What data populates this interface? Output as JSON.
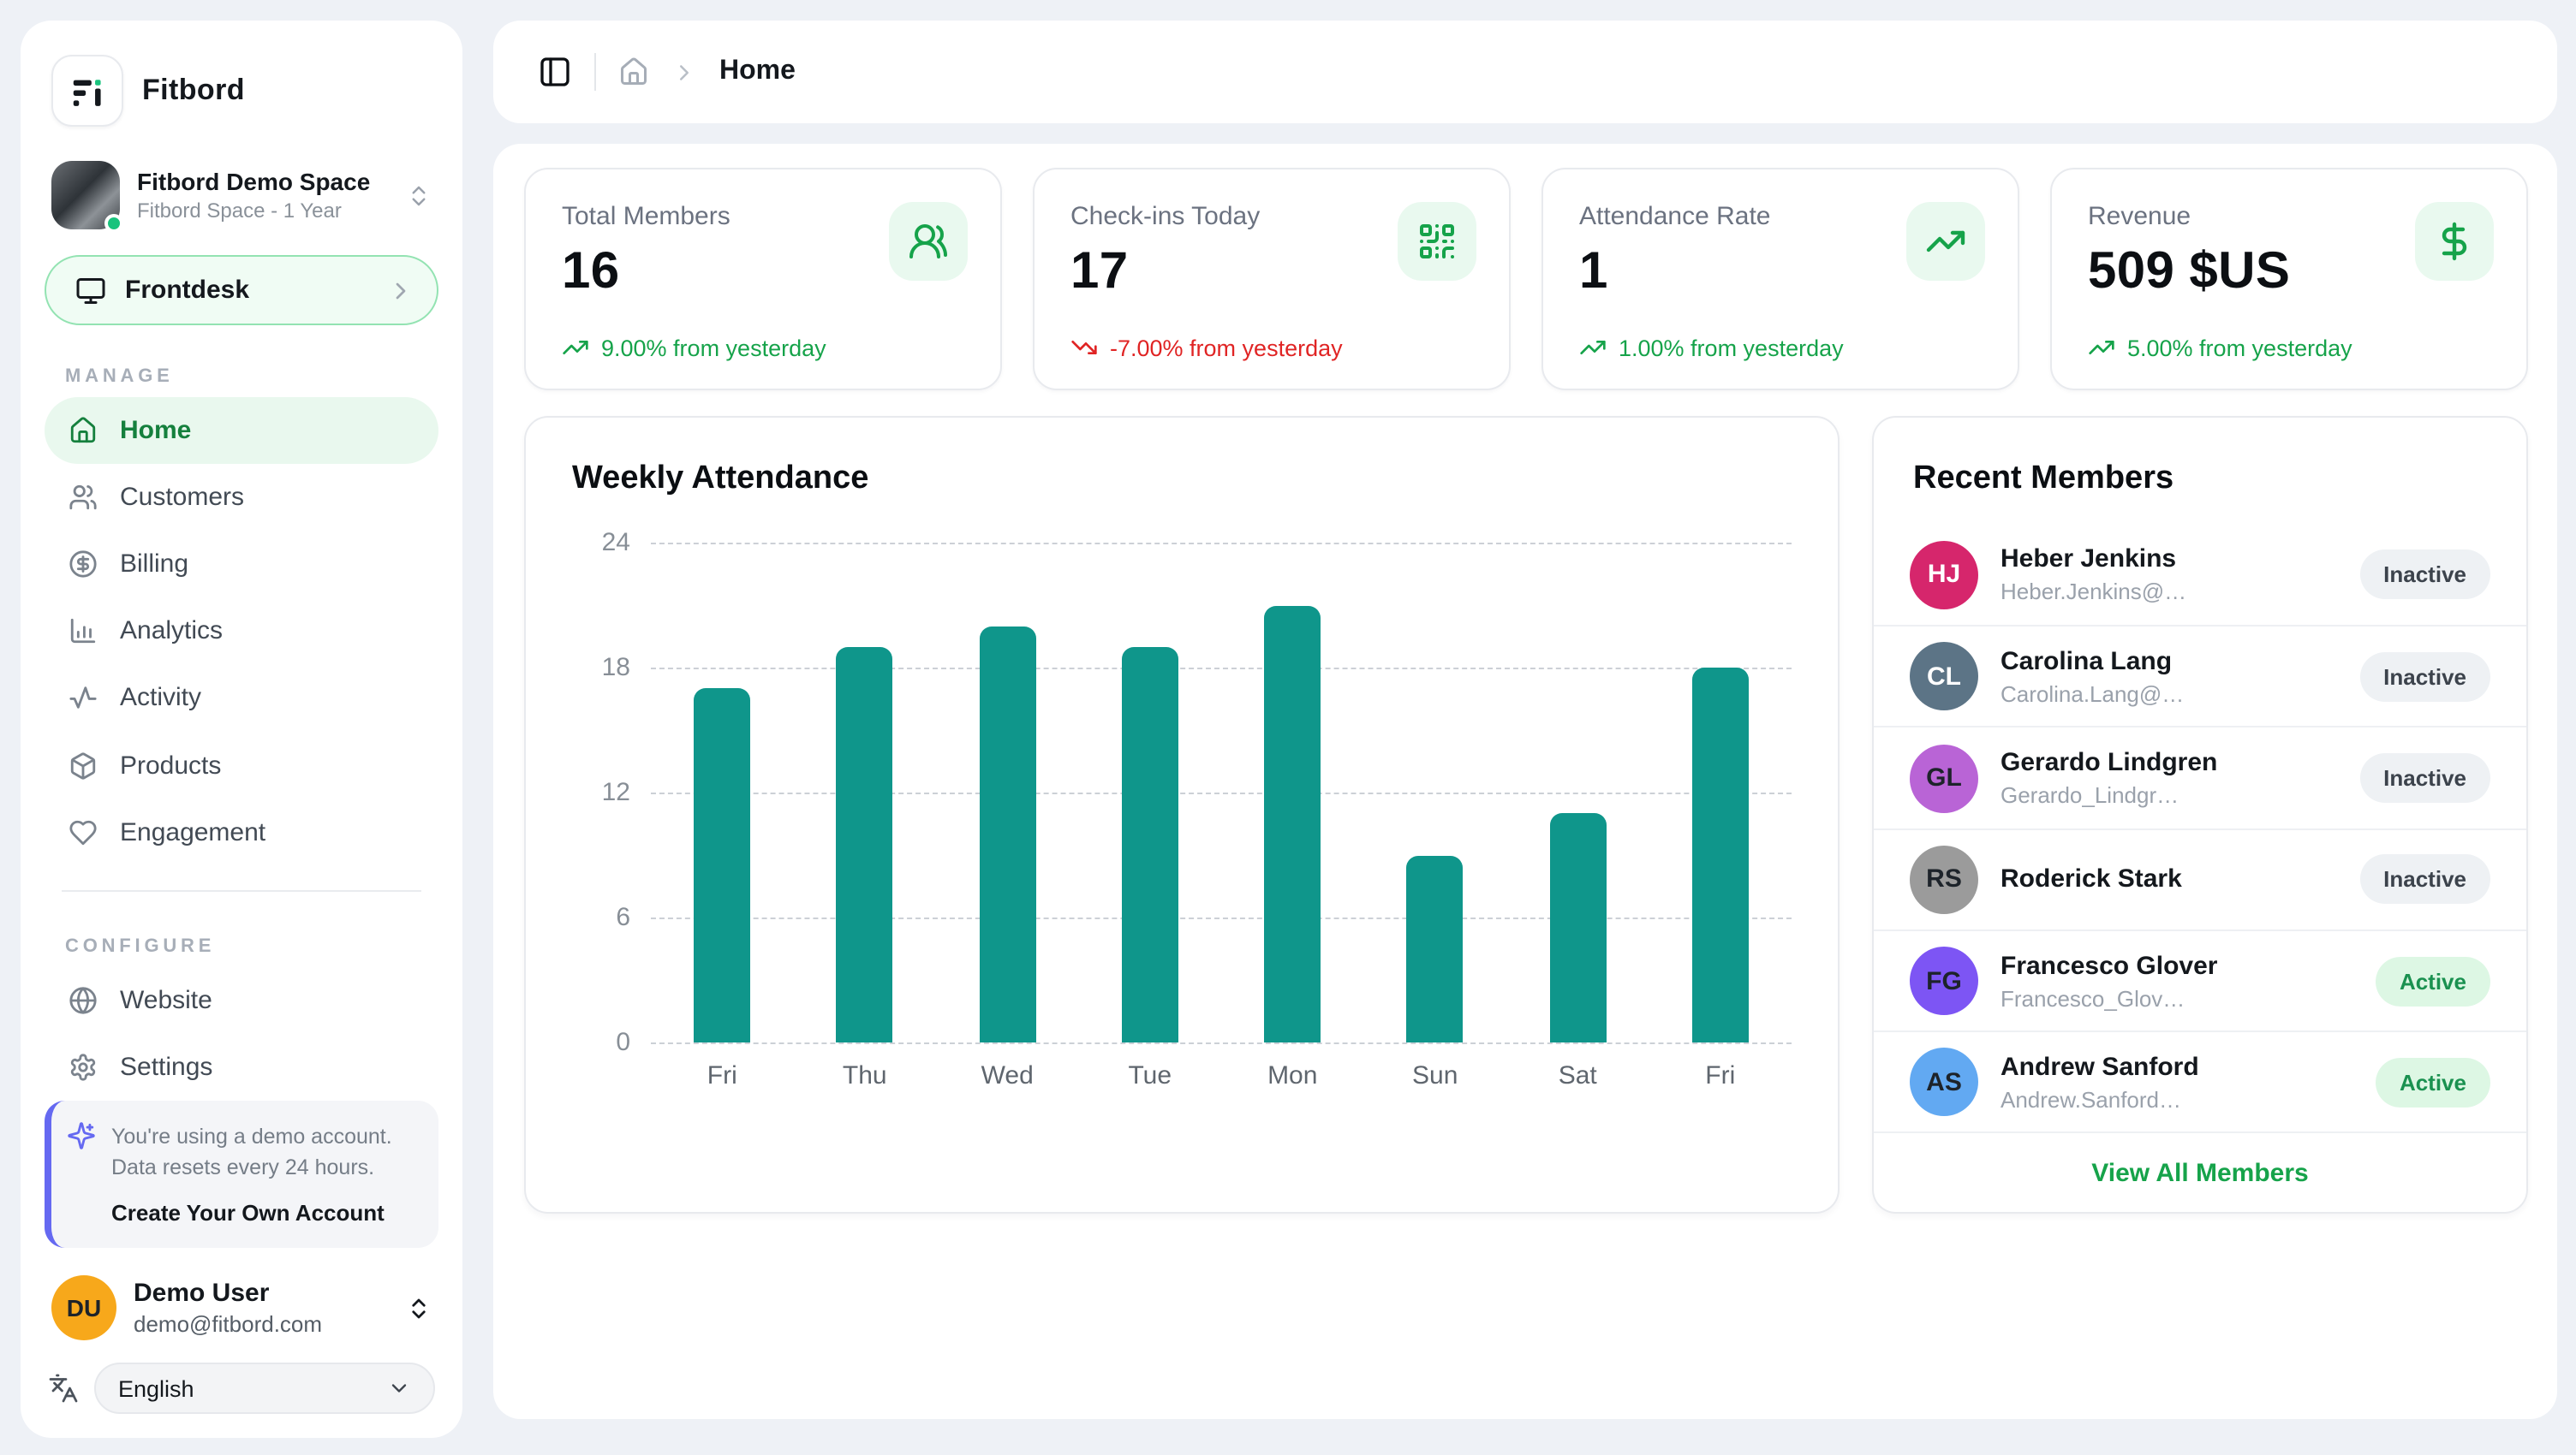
{
  "app": {
    "name": "Fitbord"
  },
  "sidebar": {
    "space": {
      "name": "Fitbord Demo Space",
      "plan": "Fitbord Space - 1 Year"
    },
    "frontdesk_label": "Frontdesk",
    "section_labels": {
      "manage": "MANAGE",
      "configure": "CONFIGURE"
    },
    "manage_items": [
      {
        "label": "Home",
        "icon": "house-icon",
        "active": true
      },
      {
        "label": "Customers",
        "icon": "users-icon",
        "active": false
      },
      {
        "label": "Billing",
        "icon": "circle-dollar-icon",
        "active": false
      },
      {
        "label": "Analytics",
        "icon": "chart-column-icon",
        "active": false
      },
      {
        "label": "Activity",
        "icon": "activity-icon",
        "active": false
      },
      {
        "label": "Products",
        "icon": "package-icon",
        "active": false
      },
      {
        "label": "Engagement",
        "icon": "heart-icon",
        "active": false
      }
    ],
    "configure_items": [
      {
        "label": "Website",
        "icon": "globe-icon"
      },
      {
        "label": "Settings",
        "icon": "gear-icon"
      }
    ],
    "demo_notice": {
      "text": "You're using a demo account. Data resets every 24 hours.",
      "cta": "Create Your Own Account"
    },
    "user": {
      "initials": "DU",
      "name": "Demo User",
      "email": "demo@fitbord.com"
    },
    "language": {
      "value": "English"
    }
  },
  "topbar": {
    "breadcrumb": "Home"
  },
  "stats": [
    {
      "title": "Total Members",
      "value": "16",
      "trend": "9.00% from yesterday",
      "direction": "up",
      "icon": "users-round-icon"
    },
    {
      "title": "Check-ins Today",
      "value": "17",
      "trend": "-7.00% from yesterday",
      "direction": "down",
      "icon": "qr-code-icon"
    },
    {
      "title": "Attendance Rate",
      "value": "1",
      "trend": "1.00% from yesterday",
      "direction": "up",
      "icon": "trending-up-icon"
    },
    {
      "title": "Revenue",
      "value": "509 $US",
      "trend": "5.00% from yesterday",
      "direction": "up",
      "icon": "dollar-sign-icon"
    }
  ],
  "chart_data": {
    "type": "bar",
    "title": "Weekly Attendance",
    "categories": [
      "Fri",
      "Thu",
      "Wed",
      "Tue",
      "Mon",
      "Sun",
      "Sat",
      "Fri"
    ],
    "values": [
      17,
      19,
      20,
      19,
      21,
      9,
      11,
      18
    ],
    "xlabel": "",
    "ylabel": "",
    "ylim": [
      0,
      24
    ],
    "yticks": [
      0,
      6,
      12,
      18,
      24
    ],
    "grid": "horizontal-dashed",
    "legend": false,
    "bar_color": "#0f968b"
  },
  "members": {
    "title": "Recent Members",
    "rows": [
      {
        "initials": "HJ",
        "name": "Heber Jenkins",
        "email": "Heber.Jenkins@…",
        "status": "Inactive",
        "avatar_color": "#d6266c",
        "initials_color": "#ffffff"
      },
      {
        "initials": "CL",
        "name": "Carolina Lang",
        "email": "Carolina.Lang@…",
        "status": "Inactive",
        "avatar_color": "#5c7486",
        "initials_color": "#ffffff"
      },
      {
        "initials": "GL",
        "name": "Gerardo Lindgren",
        "email": "Gerardo_Lindgr…",
        "status": "Inactive",
        "avatar_color": "#b964d6",
        "initials_color": "#1d232a"
      },
      {
        "initials": "RS",
        "name": "Roderick Stark",
        "email": "",
        "status": "Inactive",
        "avatar_color": "#9b9b9b",
        "initials_color": "#1d232a"
      },
      {
        "initials": "FG",
        "name": "Francesco Glover",
        "email": "Francesco_Glov…",
        "status": "Active",
        "avatar_color": "#7d55f4",
        "initials_color": "#1d232a"
      },
      {
        "initials": "AS",
        "name": "Andrew Sanford",
        "email": "Andrew.Sanford…",
        "status": "Active",
        "avatar_color": "#62a9f2",
        "initials_color": "#1d232a"
      }
    ],
    "view_all": "View All Members"
  },
  "colors": {
    "accent_green": "#16a34a",
    "active_badge_bg": "#ddf7e4",
    "negative_red": "#e02424",
    "bar_teal": "#0f968b",
    "sidebar_active_bg": "#e9f8ee",
    "demo_purple": "#6569f1",
    "page_bg": "#eef1f6"
  }
}
